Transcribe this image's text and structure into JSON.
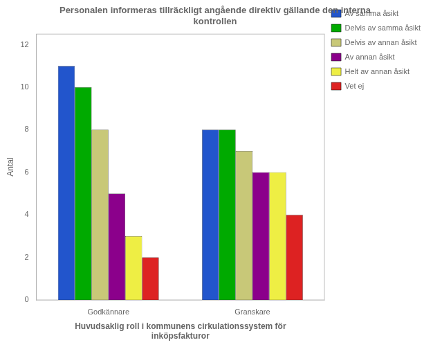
{
  "chart_data": {
    "type": "bar",
    "title": "Personalen informeras tillräckligt angående direktiv gällande den interna\nkontrollen",
    "xlabel": "Huvudsaklig roll i kommunens cirkulationssystem för\ninköpsfakturor",
    "ylabel": "Antal",
    "categories": [
      "Godkännare",
      "Granskare"
    ],
    "series": [
      {
        "name": "Av samma åsikt",
        "values": [
          11,
          8
        ],
        "color": "#2255CC"
      },
      {
        "name": "Delvis av samma åsikt",
        "values": [
          10,
          8
        ],
        "color": "#00AA00"
      },
      {
        "name": "Delvis av annan åsikt",
        "values": [
          8,
          7
        ],
        "color": "#C8C878"
      },
      {
        "name": "Av annan åsikt",
        "values": [
          5,
          6
        ],
        "color": "#8B008B"
      },
      {
        "name": "Helt av annan åsikt",
        "values": [
          3,
          6
        ],
        "color": "#EEEE44"
      },
      {
        "name": "Vet ej",
        "values": [
          2,
          4
        ],
        "color": "#DD2222"
      }
    ],
    "ylim": [
      0,
      12.5
    ],
    "yticks": [
      0,
      2,
      4,
      6,
      8,
      10,
      12
    ],
    "grid": false,
    "legend": "right"
  }
}
